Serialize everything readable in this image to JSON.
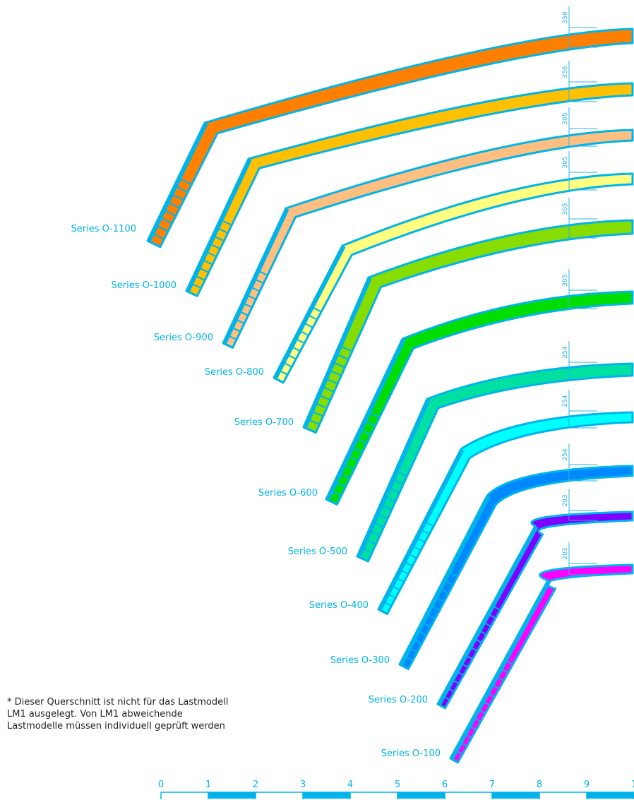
{
  "colors": {
    "outline": "#00b4ea",
    "dimension": "#2ab5e6"
  },
  "series": [
    {
      "label": "Series O-1100",
      "thickness": "356",
      "fill": "#ff7f00"
    },
    {
      "label": "Series O-1000",
      "thickness": "356",
      "fill": "#ffc000"
    },
    {
      "label": "Series O-900",
      "thickness": "305",
      "fill": "#ffbf80"
    },
    {
      "label": "Series O-800",
      "thickness": "305",
      "fill": "#ffff80"
    },
    {
      "label": "Series O-700",
      "thickness": "305",
      "fill": "#88dd00"
    },
    {
      "label": "Series O-600",
      "thickness": "305",
      "fill": "#00dd00"
    },
    {
      "label": "Series O-500",
      "thickness": "254",
      "fill": "#00e0a0"
    },
    {
      "label": "Series O-400",
      "thickness": "254",
      "fill": "#00ffff"
    },
    {
      "label": "Series O-300",
      "thickness": "254",
      "fill": "#0088ff"
    },
    {
      "label": "Series O-200",
      "thickness": "203",
      "fill": "#8000ff"
    },
    {
      "label": "Series O-100",
      "thickness": "203",
      "fill": "#ff00ff"
    }
  ],
  "scale": {
    "ticks": [
      "0",
      "1",
      "2",
      "3",
      "4",
      "5",
      "6",
      "7",
      "8",
      "9",
      "1"
    ]
  },
  "note": {
    "line1": "* Dieser Querschnitt ist nicht für das Lastmodell",
    "line2": "LM1 ausgelegt. Von LM1 abweichende",
    "line3": "Lastmodelle müssen individuell geprüft werden"
  }
}
